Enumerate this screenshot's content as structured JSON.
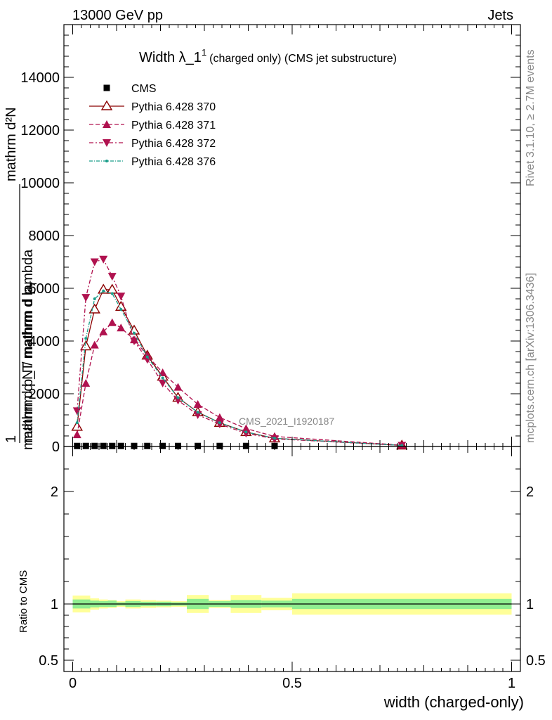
{
  "header": {
    "energy": "13000 GeV pp",
    "category": "Jets",
    "rivet_version": "Rivet 3.1.10, ≥ 2.7M events",
    "source": "mcplots.cern.ch [arXiv:1306.3436]",
    "watermark": "CMS_2021_I1920187"
  },
  "chart_data": [
    {
      "type": "line",
      "title": "Width λ_1",
      "title_sup": "1",
      "subtitle": "(charged only) (CMS jet substructure)",
      "ylabel_top": "mathrm d²N",
      "ylabel_top2": "mathrm d p_T mathrm d lambda",
      "ylabel_bot": "1 mathrm d N / mathrm d p_T mathrm d",
      "ylabel_frac_num": "1",
      "ylabel_frac_den": "mathrm d N / mathrm d p",
      "ylabel_tsub": "T",
      "xlim": [
        -0.02,
        1.02
      ],
      "ylim": [
        0,
        16000
      ],
      "yticks": [
        {
          "v": 0,
          "label": "0"
        },
        {
          "v": 2000,
          "label": "2000"
        },
        {
          "v": 4000,
          "label": "4000"
        },
        {
          "v": 6000,
          "label": "6000"
        },
        {
          "v": 8000,
          "label": "8000"
        },
        {
          "v": 10000,
          "label": "10000"
        },
        {
          "v": 12000,
          "label": "12000"
        },
        {
          "v": 14000,
          "label": "14000"
        }
      ],
      "legend_position": "top-left",
      "series": [
        {
          "name": "CMS",
          "color": "#000000",
          "marker": "square",
          "dash": "none",
          "x": [
            0.01,
            0.03,
            0.05,
            0.07,
            0.09,
            0.11,
            0.14,
            0.17,
            0.205,
            0.24,
            0.285,
            0.335,
            0.395,
            0.46
          ],
          "y": [
            20,
            20,
            20,
            20,
            20,
            20,
            20,
            20,
            20,
            20,
            20,
            20,
            20,
            20
          ]
        },
        {
          "name": "Pythia 6.428 370",
          "color": "#8b0000",
          "marker": "triangle-open",
          "dash": "none",
          "x": [
            0.01,
            0.03,
            0.05,
            0.07,
            0.09,
            0.11,
            0.14,
            0.17,
            0.205,
            0.24,
            0.285,
            0.335,
            0.395,
            0.46,
            0.75
          ],
          "y": [
            750,
            3800,
            5200,
            5950,
            5950,
            5300,
            4400,
            3450,
            2650,
            1850,
            1300,
            900,
            550,
            310,
            40
          ]
        },
        {
          "name": "Pythia 6.428 371",
          "color": "#b0124f",
          "marker": "triangle-up",
          "dash": "6,3",
          "x": [
            0.01,
            0.03,
            0.05,
            0.07,
            0.09,
            0.11,
            0.14,
            0.17,
            0.205,
            0.24,
            0.285,
            0.335,
            0.395,
            0.46,
            0.75
          ],
          "y": [
            450,
            2400,
            3850,
            4350,
            4700,
            4500,
            4050,
            3450,
            2800,
            2250,
            1600,
            1100,
            680,
            380,
            50
          ]
        },
        {
          "name": "Pythia 6.428 372",
          "color": "#b0124f",
          "marker": "triangle-down",
          "dash": "6,3,2,3",
          "x": [
            0.01,
            0.03,
            0.05,
            0.07,
            0.09,
            0.11,
            0.14,
            0.17,
            0.205,
            0.24,
            0.285,
            0.335,
            0.395,
            0.46,
            0.75
          ],
          "y": [
            1350,
            5650,
            7000,
            7100,
            6450,
            5700,
            4000,
            3300,
            2400,
            1750,
            1200,
            850,
            500,
            290,
            40
          ]
        },
        {
          "name": "Pythia 6.428 376",
          "color": "#1a9e8a",
          "marker": "dot",
          "dash": "5,2,1,2",
          "x": [
            0.01,
            0.03,
            0.05,
            0.07,
            0.09,
            0.11,
            0.14,
            0.17,
            0.205,
            0.24,
            0.285,
            0.335,
            0.395,
            0.46,
            0.75
          ],
          "y": [
            900,
            4100,
            5600,
            5900,
            5800,
            5200,
            4300,
            3400,
            2600,
            1850,
            1300,
            900,
            550,
            310,
            40
          ]
        }
      ]
    },
    {
      "type": "area",
      "ylabel": "Ratio to CMS",
      "xlabel": "width (charged-only)",
      "xlim": [
        -0.02,
        1.02
      ],
      "ylim": [
        0.4,
        2.4
      ],
      "yticks": [
        {
          "v": 0.5,
          "label": "0.5"
        },
        {
          "v": 1,
          "label": "1"
        },
        {
          "v": 2,
          "label": "2"
        }
      ],
      "xticks": [
        {
          "v": 0,
          "label": "0"
        },
        {
          "v": 0.5,
          "label": "0.5"
        },
        {
          "v": 1,
          "label": "1"
        }
      ],
      "bands": {
        "edges": [
          0.0,
          0.04,
          0.06,
          0.08,
          0.1,
          0.12,
          0.155,
          0.19,
          0.225,
          0.26,
          0.31,
          0.36,
          0.43,
          0.5,
          1.0
        ],
        "inner_lo": [
          0.96,
          0.97,
          0.975,
          0.975,
          0.985,
          0.975,
          0.98,
          0.98,
          0.985,
          0.955,
          0.975,
          0.965,
          0.97,
          0.955
        ],
        "inner_hi": [
          1.04,
          1.03,
          1.025,
          1.03,
          1.015,
          1.025,
          1.02,
          1.02,
          1.015,
          1.045,
          1.025,
          1.035,
          1.03,
          1.045
        ],
        "outer_lo": [
          0.925,
          0.95,
          0.96,
          0.965,
          0.975,
          0.96,
          0.965,
          0.97,
          0.975,
          0.92,
          0.965,
          0.92,
          0.945,
          0.905
        ],
        "outer_hi": [
          1.075,
          1.05,
          1.04,
          1.035,
          1.025,
          1.04,
          1.035,
          1.03,
          1.025,
          1.08,
          1.035,
          1.08,
          1.055,
          1.095
        ],
        "inner_color": "#90ee90",
        "outer_color": "#ffff99"
      }
    }
  ]
}
